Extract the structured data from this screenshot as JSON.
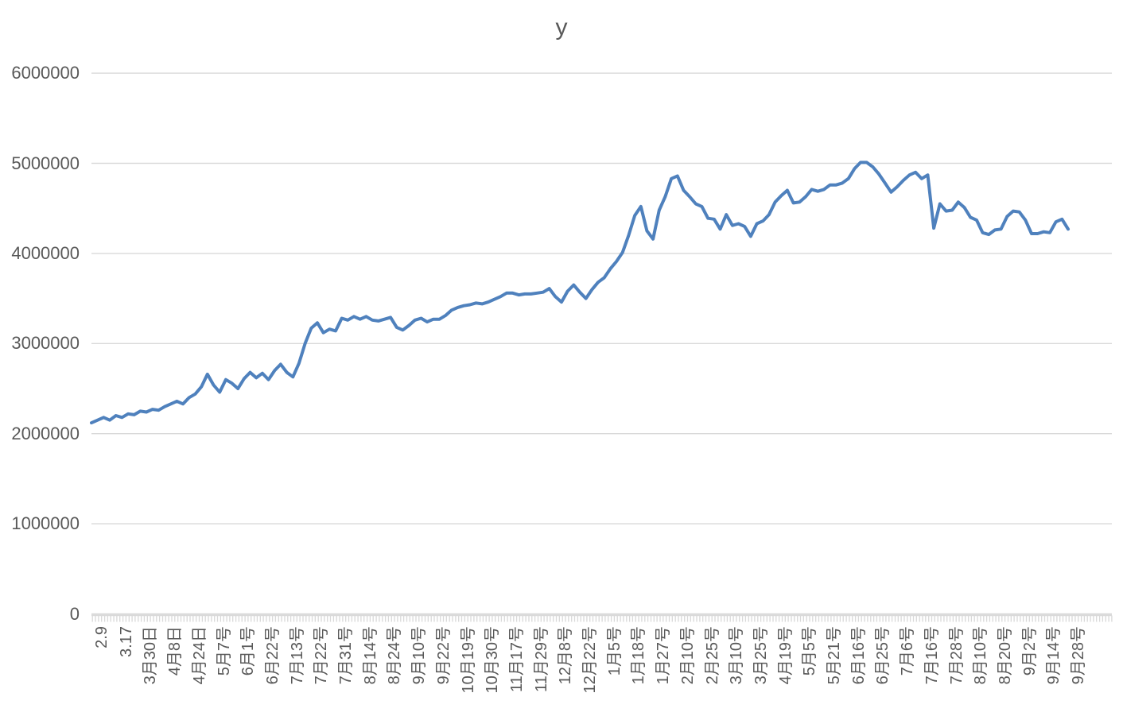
{
  "chart_data": {
    "type": "line",
    "title": "y",
    "legend_position": "none",
    "grid": "horizontal",
    "ylim": [
      0,
      6000000
    ],
    "y_ticks": [
      0,
      1000000,
      2000000,
      3000000,
      4000000,
      5000000,
      6000000
    ],
    "x_tick_labels": [
      "2.9",
      "3.17",
      "3月30日",
      "4月8日",
      "4月24日",
      "5月7号",
      "6月1号",
      "6月22号",
      "7月13号",
      "7月22号",
      "7月31号",
      "8月14号",
      "8月24号",
      "9月10号",
      "9月22号",
      "10月19号",
      "10月30号",
      "11月17号",
      "11月29号",
      "12月8号",
      "12月22号",
      "1月5号",
      "1月18号",
      "1月27号",
      "2月10号",
      "2月25号",
      "3月10号",
      "3月25号",
      "4月19号",
      "5月5号",
      "5月21号",
      "6月16号",
      "6月25号",
      "7月6号",
      "7月16号",
      "7月28号",
      "8月10号",
      "8月20号",
      "9月2号",
      "9月14号",
      "9月28号"
    ],
    "points_per_label_interval": 4,
    "series": [
      {
        "name": "y",
        "values": [
          2120000,
          2150000,
          2180000,
          2150000,
          2200000,
          2180000,
          2220000,
          2210000,
          2250000,
          2240000,
          2270000,
          2260000,
          2300000,
          2330000,
          2360000,
          2330000,
          2400000,
          2440000,
          2520000,
          2660000,
          2540000,
          2460000,
          2600000,
          2560000,
          2500000,
          2610000,
          2680000,
          2620000,
          2670000,
          2600000,
          2700000,
          2770000,
          2680000,
          2630000,
          2780000,
          3000000,
          3170000,
          3230000,
          3120000,
          3160000,
          3140000,
          3280000,
          3260000,
          3300000,
          3270000,
          3300000,
          3260000,
          3250000,
          3270000,
          3290000,
          3180000,
          3150000,
          3200000,
          3260000,
          3280000,
          3240000,
          3270000,
          3270000,
          3310000,
          3370000,
          3400000,
          3420000,
          3430000,
          3450000,
          3440000,
          3460000,
          3490000,
          3520000,
          3560000,
          3560000,
          3540000,
          3550000,
          3550000,
          3560000,
          3570000,
          3610000,
          3520000,
          3460000,
          3580000,
          3650000,
          3570000,
          3500000,
          3600000,
          3680000,
          3730000,
          3830000,
          3910000,
          4010000,
          4200000,
          4420000,
          4520000,
          4250000,
          4160000,
          4480000,
          4630000,
          4830000,
          4860000,
          4700000,
          4630000,
          4550000,
          4520000,
          4390000,
          4380000,
          4270000,
          4430000,
          4310000,
          4330000,
          4300000,
          4190000,
          4330000,
          4360000,
          4430000,
          4570000,
          4640000,
          4700000,
          4560000,
          4570000,
          4630000,
          4710000,
          4690000,
          4710000,
          4760000,
          4760000,
          4780000,
          4830000,
          4940000,
          5010000,
          5010000,
          4960000,
          4880000,
          4780000,
          4680000,
          4740000,
          4810000,
          4870000,
          4900000,
          4830000,
          4870000,
          4280000,
          4550000,
          4470000,
          4480000,
          4570000,
          4510000,
          4400000,
          4370000,
          4230000,
          4210000,
          4260000,
          4270000,
          4410000,
          4470000,
          4460000,
          4370000,
          4220000,
          4220000,
          4240000,
          4230000,
          4350000,
          4380000,
          4270000
        ]
      }
    ],
    "colors": {
      "line": "#4f81bd",
      "gridline": "#d9d9d9",
      "axis": "#d9d9d9",
      "text": "#595959"
    }
  }
}
